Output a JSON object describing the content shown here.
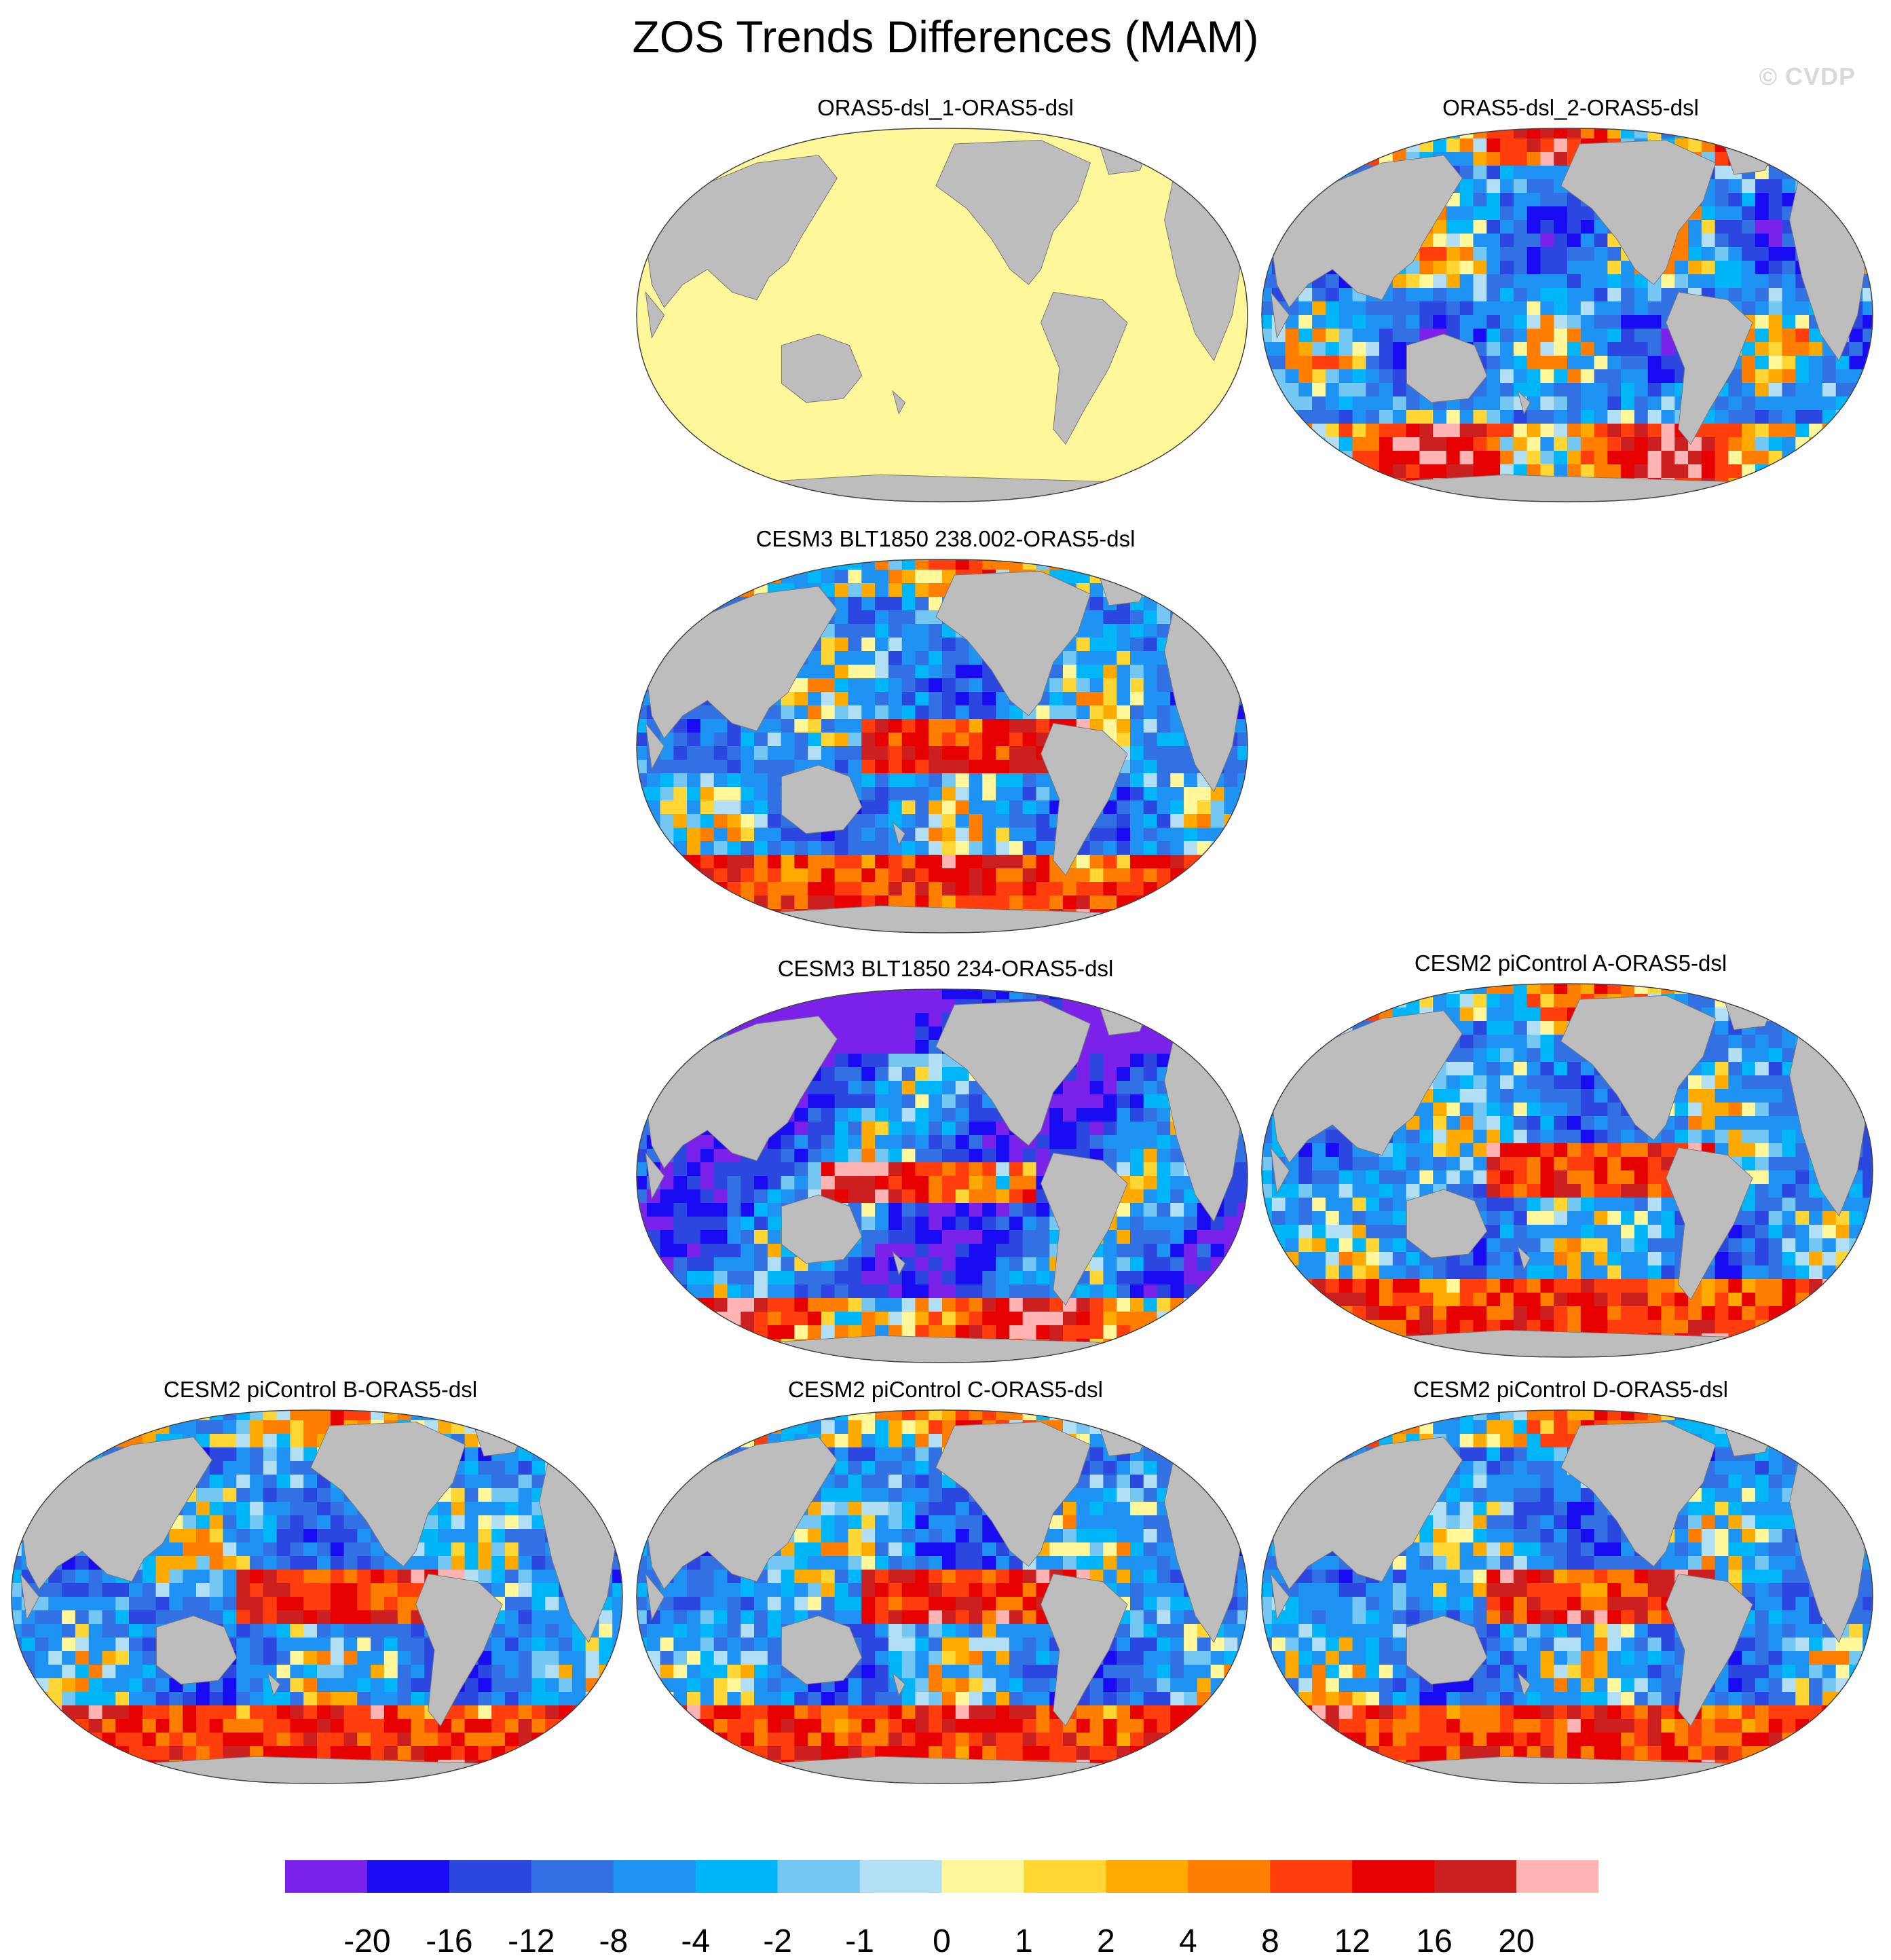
{
  "figure": {
    "title": "ZOS Trends Differences (MAM)",
    "credit": "© CVDP"
  },
  "map_data": {
    "projection": "Robinson (Pacific-centered)",
    "land_color": "#bdbdbd",
    "panels": [
      {
        "id": "p1",
        "title": "ORAS5-dsl_1-ORAS5-dsl",
        "pattern": "uniform"
      },
      {
        "id": "p2",
        "title": "ORAS5-dsl_2-ORAS5-dsl",
        "pattern": "mixed"
      },
      {
        "id": "p3",
        "title": "CESM3 BLT1850 238.002-ORAS5-dsl",
        "pattern": "warm-tropics"
      },
      {
        "id": "p4",
        "title": "CESM3 BLT1850 234-ORAS5-dsl",
        "pattern": "cool"
      },
      {
        "id": "p5",
        "title": "CESM2 piControl A-ORAS5-dsl",
        "pattern": "warm-tropics"
      },
      {
        "id": "p6",
        "title": "CESM2 piControl B-ORAS5-dsl",
        "pattern": "warm-tropics"
      },
      {
        "id": "p7",
        "title": "CESM2 piControl C-ORAS5-dsl",
        "pattern": "warm-tropics"
      },
      {
        "id": "p8",
        "title": "CESM2 piControl D-ORAS5-dsl",
        "pattern": "warm-tropics"
      }
    ]
  },
  "colorbar": {
    "colors": [
      "#7b22ea",
      "#1a0cf2",
      "#2c47e0",
      "#3271e3",
      "#1f93f3",
      "#00b6f8",
      "#74c7f2",
      "#b3dff4",
      "#fff799",
      "#ffd633",
      "#ffaa00",
      "#ff7d00",
      "#ff3d0d",
      "#e60000",
      "#cc1f1f",
      "#ffb3b3"
    ],
    "labels": [
      "-20",
      "-16",
      "-12",
      "-8",
      "-4",
      "-2",
      "-1",
      "0",
      "1",
      "2",
      "4",
      "8",
      "12",
      "16",
      "20"
    ]
  }
}
